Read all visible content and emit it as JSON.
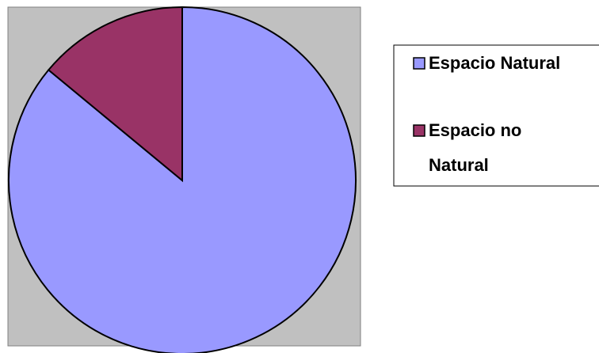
{
  "chart_data": {
    "type": "pie",
    "categories": [
      "Espacio Natural",
      "Espacio no Natural"
    ],
    "values": [
      86,
      14
    ],
    "colors": [
      "#9999ff",
      "#993366"
    ],
    "legend": "right"
  }
}
